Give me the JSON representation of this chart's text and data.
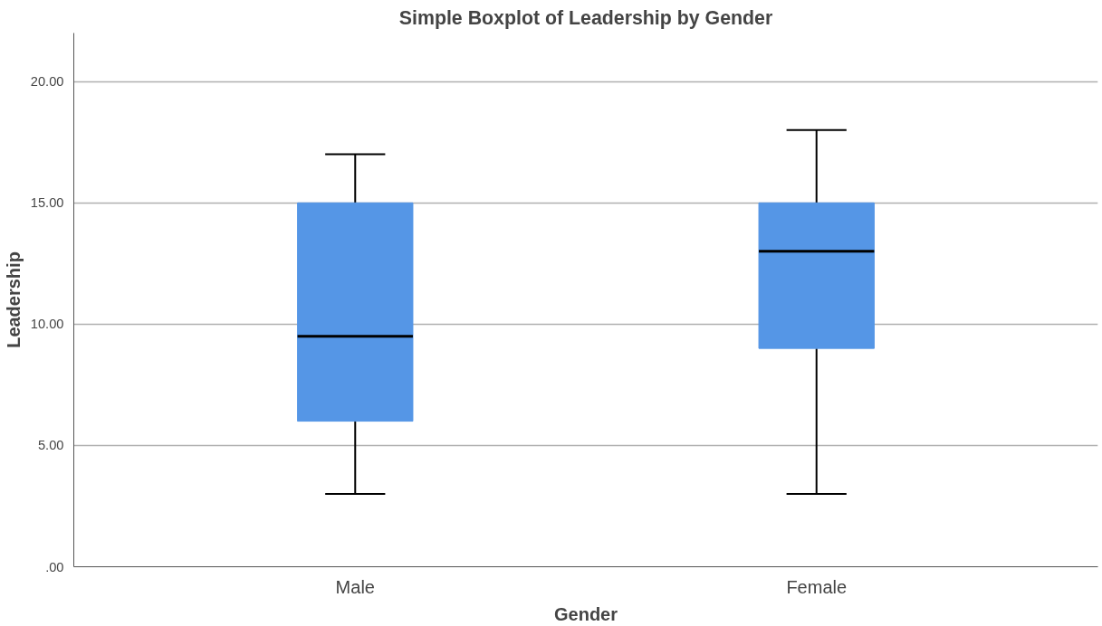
{
  "chart_data": {
    "type": "box",
    "title": "Simple Boxplot of Leadership by Gender",
    "xlabel": "Gender",
    "ylabel": "Leadership",
    "categories": [
      "Male",
      "Female"
    ],
    "boxes": [
      {
        "low": 3,
        "q1": 6,
        "median": 9.5,
        "q3": 15,
        "high": 17
      },
      {
        "low": 3,
        "q1": 9,
        "median": 13,
        "q3": 15,
        "high": 18
      }
    ],
    "color": "#5596e6",
    "ylim": [
      0,
      22
    ],
    "yticks": [
      {
        "value": 0,
        "label": ".00"
      },
      {
        "value": 5,
        "label": "5.00"
      },
      {
        "value": 10,
        "label": "10.00"
      },
      {
        "value": 15,
        "label": "15.00"
      },
      {
        "value": 20,
        "label": "20.00"
      }
    ],
    "grid": "y"
  }
}
